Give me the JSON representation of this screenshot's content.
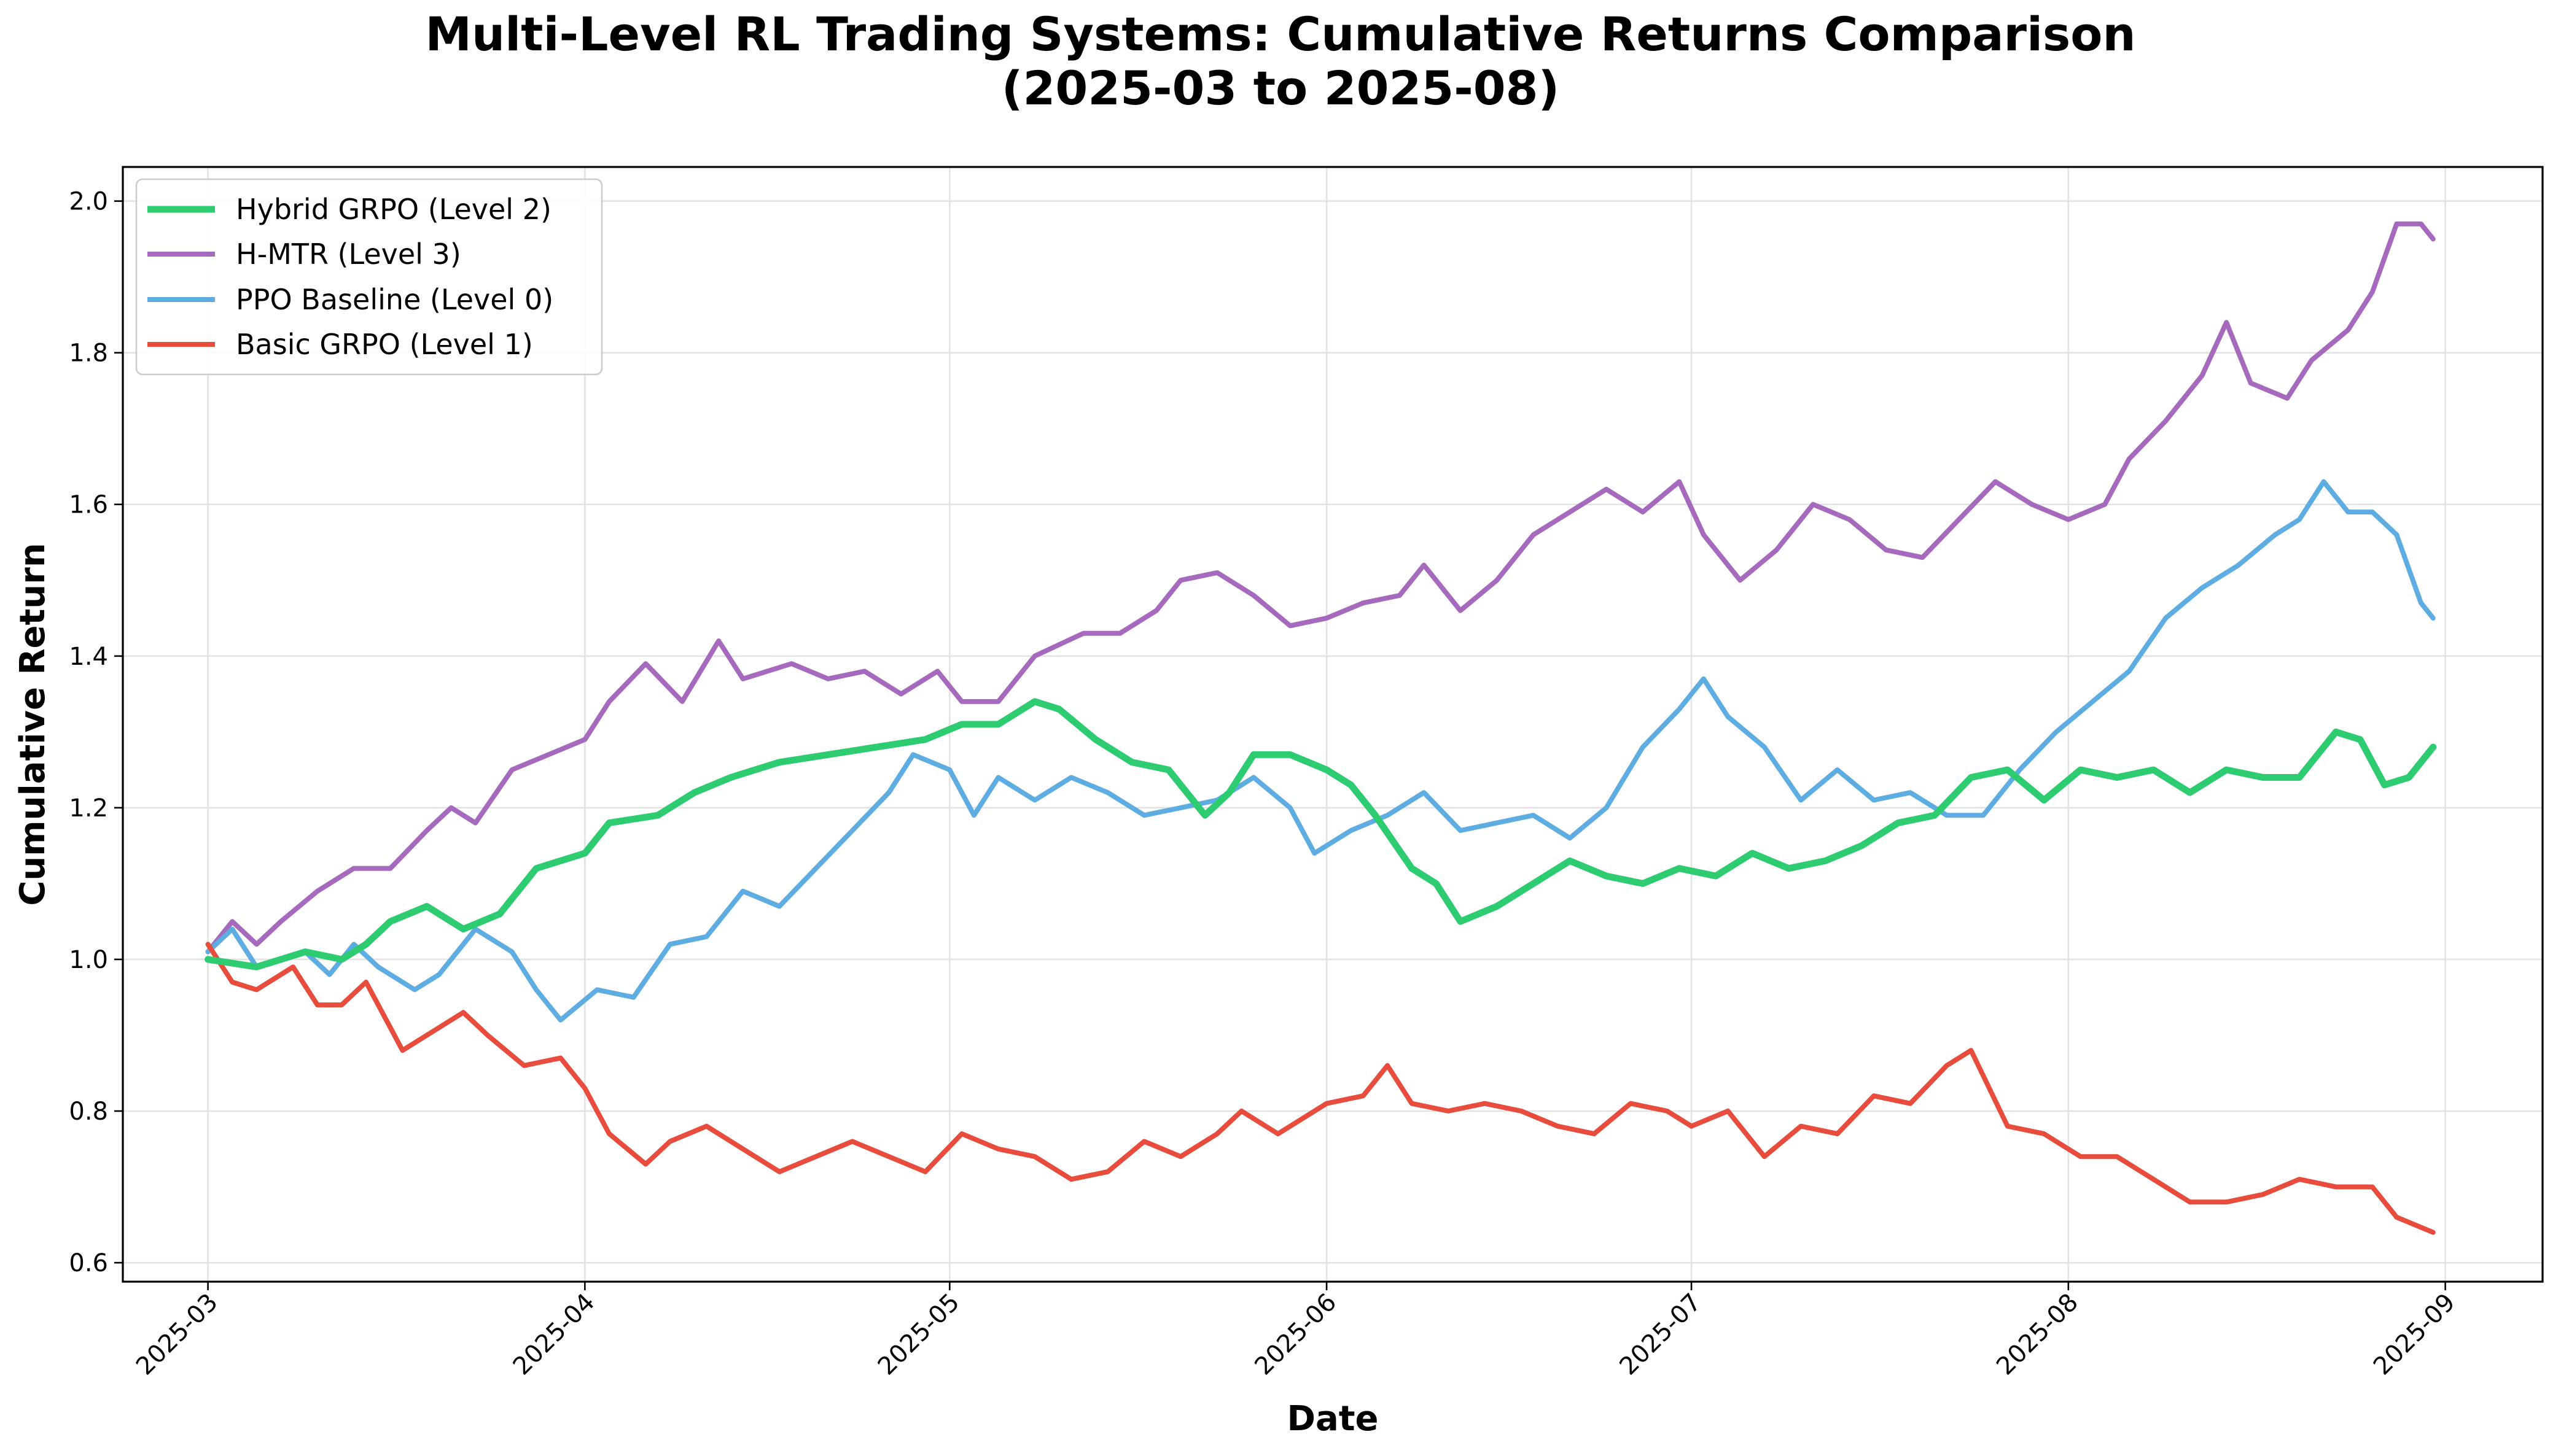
{
  "chart_data": {
    "type": "line",
    "title": "Multi-Level RL Trading Systems: Cumulative Returns Comparison",
    "subtitle": "(2025-03 to 2025-08)",
    "xlabel": "Date",
    "ylabel": "Cumulative Return",
    "xlim": [
      "2025-02-22",
      "2025-09-09"
    ],
    "ylim": [
      0.575,
      2.045
    ],
    "x_ticks": [
      "2025-03",
      "2025-04",
      "2025-05",
      "2025-06",
      "2025-07",
      "2025-08",
      "2025-09"
    ],
    "x_tick_dates": [
      "2025-03-01",
      "2025-04-01",
      "2025-05-01",
      "2025-06-01",
      "2025-07-01",
      "2025-08-01",
      "2025-09-01"
    ],
    "y_ticks": [
      "0.6",
      "0.8",
      "1.0",
      "1.2",
      "1.4",
      "1.6",
      "1.8",
      "2.0"
    ],
    "grid": true,
    "legend_position": "upper-left",
    "series": [
      {
        "name": "Hybrid GRPO (Level 2)",
        "color": "#2ecc71",
        "points": [
          [
            "2025-03-01",
            1.0
          ],
          [
            "2025-03-05",
            0.99
          ],
          [
            "2025-03-07",
            1.0
          ],
          [
            "2025-03-09",
            1.01
          ],
          [
            "2025-03-12",
            1.0
          ],
          [
            "2025-03-14",
            1.02
          ],
          [
            "2025-03-16",
            1.05
          ],
          [
            "2025-03-19",
            1.07
          ],
          [
            "2025-03-22",
            1.04
          ],
          [
            "2025-03-25",
            1.06
          ],
          [
            "2025-03-28",
            1.12
          ],
          [
            "2025-04-01",
            1.14
          ],
          [
            "2025-04-03",
            1.18
          ],
          [
            "2025-04-07",
            1.19
          ],
          [
            "2025-04-10",
            1.22
          ],
          [
            "2025-04-13",
            1.24
          ],
          [
            "2025-04-17",
            1.26
          ],
          [
            "2025-04-21",
            1.27
          ],
          [
            "2025-04-25",
            1.28
          ],
          [
            "2025-04-29",
            1.29
          ],
          [
            "2025-05-02",
            1.31
          ],
          [
            "2025-05-05",
            1.31
          ],
          [
            "2025-05-08",
            1.34
          ],
          [
            "2025-05-10",
            1.33
          ],
          [
            "2025-05-13",
            1.29
          ],
          [
            "2025-05-16",
            1.26
          ],
          [
            "2025-05-19",
            1.25
          ],
          [
            "2025-05-22",
            1.19
          ],
          [
            "2025-05-24",
            1.22
          ],
          [
            "2025-05-26",
            1.27
          ],
          [
            "2025-05-29",
            1.27
          ],
          [
            "2025-06-01",
            1.25
          ],
          [
            "2025-06-03",
            1.23
          ],
          [
            "2025-06-05",
            1.19
          ],
          [
            "2025-06-08",
            1.12
          ],
          [
            "2025-06-10",
            1.1
          ],
          [
            "2025-06-12",
            1.05
          ],
          [
            "2025-06-15",
            1.07
          ],
          [
            "2025-06-18",
            1.1
          ],
          [
            "2025-06-21",
            1.13
          ],
          [
            "2025-06-24",
            1.11
          ],
          [
            "2025-06-27",
            1.1
          ],
          [
            "2025-06-30",
            1.12
          ],
          [
            "2025-07-03",
            1.11
          ],
          [
            "2025-07-06",
            1.14
          ],
          [
            "2025-07-09",
            1.12
          ],
          [
            "2025-07-12",
            1.13
          ],
          [
            "2025-07-15",
            1.15
          ],
          [
            "2025-07-18",
            1.18
          ],
          [
            "2025-07-21",
            1.19
          ],
          [
            "2025-07-24",
            1.24
          ],
          [
            "2025-07-27",
            1.25
          ],
          [
            "2025-07-30",
            1.21
          ],
          [
            "2025-08-02",
            1.25
          ],
          [
            "2025-08-05",
            1.24
          ],
          [
            "2025-08-08",
            1.25
          ],
          [
            "2025-08-11",
            1.22
          ],
          [
            "2025-08-14",
            1.25
          ],
          [
            "2025-08-17",
            1.24
          ],
          [
            "2025-08-20",
            1.24
          ],
          [
            "2025-08-23",
            1.3
          ],
          [
            "2025-08-25",
            1.29
          ],
          [
            "2025-08-27",
            1.23
          ],
          [
            "2025-08-29",
            1.24
          ],
          [
            "2025-08-31",
            1.28
          ]
        ]
      },
      {
        "name": "H-MTR (Level 3)",
        "color": "#a569bd",
        "points": [
          [
            "2025-03-01",
            1.01
          ],
          [
            "2025-03-03",
            1.05
          ],
          [
            "2025-03-05",
            1.02
          ],
          [
            "2025-03-07",
            1.05
          ],
          [
            "2025-03-10",
            1.09
          ],
          [
            "2025-03-13",
            1.12
          ],
          [
            "2025-03-16",
            1.12
          ],
          [
            "2025-03-19",
            1.17
          ],
          [
            "2025-03-21",
            1.2
          ],
          [
            "2025-03-23",
            1.18
          ],
          [
            "2025-03-26",
            1.25
          ],
          [
            "2025-03-29",
            1.27
          ],
          [
            "2025-04-01",
            1.29
          ],
          [
            "2025-04-03",
            1.34
          ],
          [
            "2025-04-06",
            1.39
          ],
          [
            "2025-04-09",
            1.34
          ],
          [
            "2025-04-12",
            1.42
          ],
          [
            "2025-04-14",
            1.37
          ],
          [
            "2025-04-18",
            1.39
          ],
          [
            "2025-04-21",
            1.37
          ],
          [
            "2025-04-24",
            1.38
          ],
          [
            "2025-04-27",
            1.35
          ],
          [
            "2025-04-30",
            1.38
          ],
          [
            "2025-05-02",
            1.34
          ],
          [
            "2025-05-05",
            1.34
          ],
          [
            "2025-05-08",
            1.4
          ],
          [
            "2025-05-12",
            1.43
          ],
          [
            "2025-05-15",
            1.43
          ],
          [
            "2025-05-18",
            1.46
          ],
          [
            "2025-05-20",
            1.5
          ],
          [
            "2025-05-23",
            1.51
          ],
          [
            "2025-05-26",
            1.48
          ],
          [
            "2025-05-29",
            1.44
          ],
          [
            "2025-06-01",
            1.45
          ],
          [
            "2025-06-04",
            1.47
          ],
          [
            "2025-06-07",
            1.48
          ],
          [
            "2025-06-09",
            1.52
          ],
          [
            "2025-06-12",
            1.46
          ],
          [
            "2025-06-15",
            1.5
          ],
          [
            "2025-06-18",
            1.56
          ],
          [
            "2025-06-21",
            1.59
          ],
          [
            "2025-06-24",
            1.62
          ],
          [
            "2025-06-27",
            1.59
          ],
          [
            "2025-06-30",
            1.63
          ],
          [
            "2025-07-02",
            1.56
          ],
          [
            "2025-07-05",
            1.5
          ],
          [
            "2025-07-08",
            1.54
          ],
          [
            "2025-07-11",
            1.6
          ],
          [
            "2025-07-14",
            1.58
          ],
          [
            "2025-07-17",
            1.54
          ],
          [
            "2025-07-20",
            1.53
          ],
          [
            "2025-07-23",
            1.58
          ],
          [
            "2025-07-26",
            1.63
          ],
          [
            "2025-07-29",
            1.6
          ],
          [
            "2025-08-01",
            1.58
          ],
          [
            "2025-08-04",
            1.6
          ],
          [
            "2025-08-06",
            1.66
          ],
          [
            "2025-08-09",
            1.71
          ],
          [
            "2025-08-12",
            1.77
          ],
          [
            "2025-08-14",
            1.84
          ],
          [
            "2025-08-16",
            1.76
          ],
          [
            "2025-08-19",
            1.74
          ],
          [
            "2025-08-21",
            1.79
          ],
          [
            "2025-08-24",
            1.83
          ],
          [
            "2025-08-26",
            1.88
          ],
          [
            "2025-08-28",
            1.97
          ],
          [
            "2025-08-30",
            1.97
          ],
          [
            "2025-08-31",
            1.95
          ]
        ]
      },
      {
        "name": "PPO Baseline (Level 0)",
        "color": "#5dade2",
        "points": [
          [
            "2025-03-01",
            1.01
          ],
          [
            "2025-03-03",
            1.04
          ],
          [
            "2025-03-05",
            0.99
          ],
          [
            "2025-03-07",
            1.0
          ],
          [
            "2025-03-09",
            1.01
          ],
          [
            "2025-03-11",
            0.98
          ],
          [
            "2025-03-13",
            1.02
          ],
          [
            "2025-03-15",
            0.99
          ],
          [
            "2025-03-18",
            0.96
          ],
          [
            "2025-03-20",
            0.98
          ],
          [
            "2025-03-23",
            1.04
          ],
          [
            "2025-03-26",
            1.01
          ],
          [
            "2025-03-28",
            0.96
          ],
          [
            "2025-03-30",
            0.92
          ],
          [
            "2025-04-02",
            0.96
          ],
          [
            "2025-04-05",
            0.95
          ],
          [
            "2025-04-08",
            1.02
          ],
          [
            "2025-04-11",
            1.03
          ],
          [
            "2025-04-14",
            1.09
          ],
          [
            "2025-04-17",
            1.07
          ],
          [
            "2025-04-20",
            1.12
          ],
          [
            "2025-04-23",
            1.17
          ],
          [
            "2025-04-26",
            1.22
          ],
          [
            "2025-04-28",
            1.27
          ],
          [
            "2025-05-01",
            1.25
          ],
          [
            "2025-05-03",
            1.19
          ],
          [
            "2025-05-05",
            1.24
          ],
          [
            "2025-05-08",
            1.21
          ],
          [
            "2025-05-11",
            1.24
          ],
          [
            "2025-05-14",
            1.22
          ],
          [
            "2025-05-17",
            1.19
          ],
          [
            "2025-05-20",
            1.2
          ],
          [
            "2025-05-23",
            1.21
          ],
          [
            "2025-05-26",
            1.24
          ],
          [
            "2025-05-29",
            1.2
          ],
          [
            "2025-05-31",
            1.14
          ],
          [
            "2025-06-03",
            1.17
          ],
          [
            "2025-06-06",
            1.19
          ],
          [
            "2025-06-09",
            1.22
          ],
          [
            "2025-06-12",
            1.17
          ],
          [
            "2025-06-15",
            1.18
          ],
          [
            "2025-06-18",
            1.19
          ],
          [
            "2025-06-21",
            1.16
          ],
          [
            "2025-06-24",
            1.2
          ],
          [
            "2025-06-27",
            1.28
          ],
          [
            "2025-06-30",
            1.33
          ],
          [
            "2025-07-02",
            1.37
          ],
          [
            "2025-07-04",
            1.32
          ],
          [
            "2025-07-07",
            1.28
          ],
          [
            "2025-07-10",
            1.21
          ],
          [
            "2025-07-13",
            1.25
          ],
          [
            "2025-07-16",
            1.21
          ],
          [
            "2025-07-19",
            1.22
          ],
          [
            "2025-07-22",
            1.19
          ],
          [
            "2025-07-25",
            1.19
          ],
          [
            "2025-07-28",
            1.25
          ],
          [
            "2025-07-31",
            1.3
          ],
          [
            "2025-08-03",
            1.34
          ],
          [
            "2025-08-06",
            1.38
          ],
          [
            "2025-08-09",
            1.45
          ],
          [
            "2025-08-12",
            1.49
          ],
          [
            "2025-08-15",
            1.52
          ],
          [
            "2025-08-18",
            1.56
          ],
          [
            "2025-08-20",
            1.58
          ],
          [
            "2025-08-22",
            1.63
          ],
          [
            "2025-08-24",
            1.59
          ],
          [
            "2025-08-26",
            1.59
          ],
          [
            "2025-08-28",
            1.56
          ],
          [
            "2025-08-30",
            1.47
          ],
          [
            "2025-08-31",
            1.45
          ]
        ]
      },
      {
        "name": "Basic GRPO (Level 1)",
        "color": "#e74c3c",
        "points": [
          [
            "2025-03-01",
            1.02
          ],
          [
            "2025-03-03",
            0.97
          ],
          [
            "2025-03-05",
            0.96
          ],
          [
            "2025-03-08",
            0.99
          ],
          [
            "2025-03-10",
            0.94
          ],
          [
            "2025-03-12",
            0.94
          ],
          [
            "2025-03-14",
            0.97
          ],
          [
            "2025-03-17",
            0.88
          ],
          [
            "2025-03-19",
            0.9
          ],
          [
            "2025-03-22",
            0.93
          ],
          [
            "2025-03-24",
            0.9
          ],
          [
            "2025-03-27",
            0.86
          ],
          [
            "2025-03-30",
            0.87
          ],
          [
            "2025-04-01",
            0.83
          ],
          [
            "2025-04-03",
            0.77
          ],
          [
            "2025-04-06",
            0.73
          ],
          [
            "2025-04-08",
            0.76
          ],
          [
            "2025-04-11",
            0.78
          ],
          [
            "2025-04-14",
            0.75
          ],
          [
            "2025-04-17",
            0.72
          ],
          [
            "2025-04-20",
            0.74
          ],
          [
            "2025-04-23",
            0.76
          ],
          [
            "2025-04-26",
            0.74
          ],
          [
            "2025-04-29",
            0.72
          ],
          [
            "2025-05-02",
            0.77
          ],
          [
            "2025-05-05",
            0.75
          ],
          [
            "2025-05-08",
            0.74
          ],
          [
            "2025-05-11",
            0.71
          ],
          [
            "2025-05-14",
            0.72
          ],
          [
            "2025-05-17",
            0.76
          ],
          [
            "2025-05-20",
            0.74
          ],
          [
            "2025-05-23",
            0.77
          ],
          [
            "2025-05-25",
            0.8
          ],
          [
            "2025-05-28",
            0.77
          ],
          [
            "2025-06-01",
            0.81
          ],
          [
            "2025-06-04",
            0.82
          ],
          [
            "2025-06-06",
            0.86
          ],
          [
            "2025-06-08",
            0.81
          ],
          [
            "2025-06-11",
            0.8
          ],
          [
            "2025-06-14",
            0.81
          ],
          [
            "2025-06-17",
            0.8
          ],
          [
            "2025-06-20",
            0.78
          ],
          [
            "2025-06-23",
            0.77
          ],
          [
            "2025-06-26",
            0.81
          ],
          [
            "2025-06-29",
            0.8
          ],
          [
            "2025-07-01",
            0.78
          ],
          [
            "2025-07-04",
            0.8
          ],
          [
            "2025-07-07",
            0.74
          ],
          [
            "2025-07-10",
            0.78
          ],
          [
            "2025-07-13",
            0.77
          ],
          [
            "2025-07-16",
            0.82
          ],
          [
            "2025-07-19",
            0.81
          ],
          [
            "2025-07-22",
            0.86
          ],
          [
            "2025-07-24",
            0.88
          ],
          [
            "2025-07-27",
            0.78
          ],
          [
            "2025-07-30",
            0.77
          ],
          [
            "2025-08-02",
            0.74
          ],
          [
            "2025-08-05",
            0.74
          ],
          [
            "2025-08-08",
            0.71
          ],
          [
            "2025-08-11",
            0.68
          ],
          [
            "2025-08-14",
            0.68
          ],
          [
            "2025-08-17",
            0.69
          ],
          [
            "2025-08-20",
            0.71
          ],
          [
            "2025-08-23",
            0.7
          ],
          [
            "2025-08-26",
            0.7
          ],
          [
            "2025-08-28",
            0.66
          ],
          [
            "2025-08-31",
            0.64
          ]
        ]
      }
    ]
  }
}
